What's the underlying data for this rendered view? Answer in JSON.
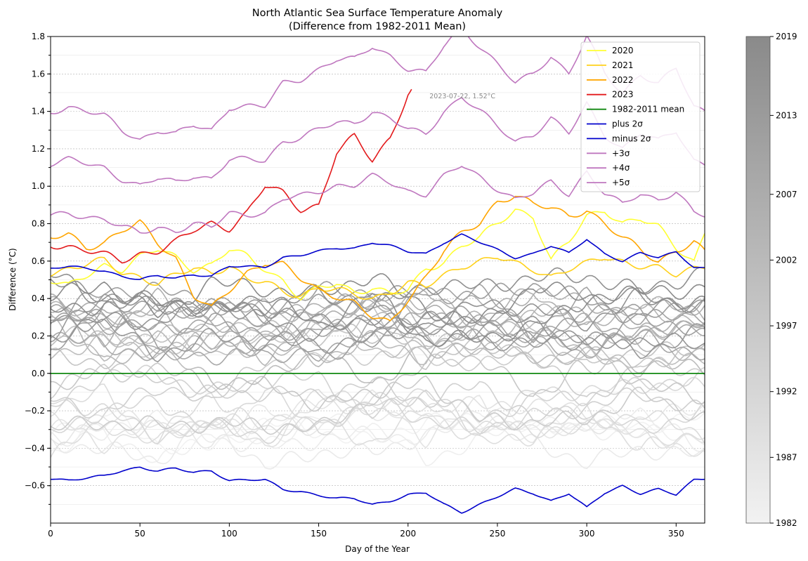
{
  "chart_data": {
    "type": "line",
    "title": "North Atlantic Sea Surface Temperature Anomaly",
    "subtitle": "(Difference from 1982-2011 Mean)",
    "xlabel": "Day of the Year",
    "ylabel": "Difference (°C)",
    "xlim": [
      0,
      366
    ],
    "ylim": [
      -0.8,
      1.8
    ],
    "xticks": [
      0,
      50,
      100,
      150,
      200,
      250,
      300,
      350
    ],
    "yticks": [
      -0.6,
      -0.4,
      -0.2,
      0.0,
      0.2,
      0.4,
      0.6,
      0.8,
      1.0,
      1.2,
      1.4,
      1.6,
      1.8
    ],
    "grid": true,
    "legend_position": "top-right",
    "annotation": {
      "text": "2023-07-22, 1.52°C",
      "x": 212,
      "y": 1.47
    },
    "colorbar": {
      "min": 1982,
      "max": 2019,
      "ticks": [
        1982,
        1987,
        1992,
        1997,
        2002,
        2007,
        2013,
        2019
      ],
      "color_low": "#f2f2f2",
      "color_high": "#8a8a8a"
    },
    "background_years": {
      "description_values_by_year": "grey lines 1982-2019",
      "mean_by_year": [
        -0.32,
        -0.36,
        -0.3,
        -0.38,
        -0.3,
        -0.24,
        -0.28,
        -0.3,
        -0.22,
        -0.2,
        -0.26,
        -0.14,
        -0.12,
        -0.02,
        -0.16,
        -0.04,
        0.18,
        0.12,
        0.14,
        0.04,
        0.16,
        0.22,
        0.26,
        0.34,
        0.3,
        0.24,
        0.22,
        0.2,
        0.34,
        0.24,
        0.34,
        0.3,
        0.18,
        0.26,
        0.38,
        0.44,
        0.3,
        0.4
      ]
    },
    "series": [
      {
        "name": "2020",
        "color": "#ffff33",
        "x": [
          0,
          10,
          20,
          30,
          40,
          50,
          60,
          70,
          80,
          90,
          100,
          110,
          120,
          130,
          140,
          150,
          160,
          170,
          180,
          190,
          200,
          210,
          220,
          230,
          240,
          250,
          260,
          270,
          280,
          290,
          300,
          310,
          320,
          330,
          340,
          350,
          360,
          366
        ],
        "values": [
          0.5,
          0.46,
          0.52,
          0.58,
          0.56,
          0.62,
          0.66,
          0.62,
          0.56,
          0.58,
          0.66,
          0.62,
          0.56,
          0.5,
          0.4,
          0.45,
          0.48,
          0.44,
          0.46,
          0.42,
          0.44,
          0.56,
          0.6,
          0.68,
          0.72,
          0.8,
          0.88,
          0.84,
          0.6,
          0.7,
          0.84,
          0.88,
          0.8,
          0.82,
          0.78,
          0.68,
          0.6,
          0.75
        ]
      },
      {
        "name": "2021",
        "color": "#ffd11a",
        "x": [
          0,
          10,
          20,
          30,
          40,
          50,
          60,
          70,
          80,
          90,
          100,
          110,
          120,
          130,
          140,
          150,
          160,
          170,
          180,
          190,
          200,
          210,
          220,
          230,
          240,
          250,
          260,
          270,
          280,
          290,
          300,
          310,
          320,
          330,
          340,
          350,
          360,
          366
        ],
        "values": [
          0.54,
          0.56,
          0.58,
          0.6,
          0.54,
          0.52,
          0.48,
          0.52,
          0.56,
          0.54,
          0.58,
          0.5,
          0.48,
          0.44,
          0.42,
          0.46,
          0.44,
          0.42,
          0.4,
          0.44,
          0.48,
          0.46,
          0.52,
          0.58,
          0.6,
          0.62,
          0.58,
          0.56,
          0.52,
          0.56,
          0.58,
          0.62,
          0.6,
          0.58,
          0.56,
          0.52,
          0.56,
          0.58
        ]
      },
      {
        "name": "2022",
        "color": "#ffa500",
        "x": [
          0,
          10,
          20,
          30,
          40,
          50,
          60,
          70,
          80,
          90,
          100,
          110,
          120,
          130,
          140,
          150,
          160,
          170,
          180,
          190,
          200,
          210,
          220,
          230,
          240,
          250,
          260,
          270,
          280,
          290,
          300,
          310,
          320,
          330,
          340,
          350,
          360,
          366
        ],
        "values": [
          0.72,
          0.74,
          0.68,
          0.7,
          0.76,
          0.8,
          0.7,
          0.62,
          0.42,
          0.34,
          0.44,
          0.54,
          0.6,
          0.58,
          0.5,
          0.44,
          0.42,
          0.38,
          0.3,
          0.26,
          0.4,
          0.52,
          0.66,
          0.74,
          0.8,
          0.92,
          0.96,
          0.9,
          0.88,
          0.84,
          0.88,
          0.8,
          0.72,
          0.66,
          0.6,
          0.66,
          0.7,
          0.64
        ]
      },
      {
        "name": "2023",
        "color": "#e31a1c",
        "x": [
          0,
          10,
          20,
          30,
          40,
          50,
          60,
          70,
          80,
          90,
          100,
          110,
          120,
          130,
          140,
          150,
          160,
          170,
          180,
          190,
          200,
          202
        ],
        "values": [
          0.69,
          0.68,
          0.66,
          0.63,
          0.6,
          0.64,
          0.66,
          0.7,
          0.76,
          0.8,
          0.78,
          0.86,
          1.0,
          0.96,
          0.88,
          0.9,
          1.18,
          1.26,
          1.14,
          1.26,
          1.5,
          1.52
        ]
      },
      {
        "name": "1982-2011 mean",
        "color": "#008000",
        "x": [
          0,
          366
        ],
        "values": [
          0.0,
          0.0
        ]
      },
      {
        "name": "plus 2σ",
        "color": "#0000cc",
        "x": [
          0,
          10,
          20,
          30,
          40,
          50,
          60,
          70,
          80,
          90,
          100,
          110,
          120,
          130,
          140,
          150,
          160,
          170,
          180,
          190,
          200,
          210,
          220,
          230,
          240,
          250,
          260,
          270,
          280,
          290,
          300,
          310,
          320,
          330,
          340,
          350,
          360,
          366
        ],
        "values": [
          0.56,
          0.57,
          0.56,
          0.55,
          0.52,
          0.5,
          0.52,
          0.51,
          0.53,
          0.52,
          0.57,
          0.57,
          0.57,
          0.62,
          0.63,
          0.65,
          0.67,
          0.67,
          0.7,
          0.68,
          0.65,
          0.64,
          0.7,
          0.74,
          0.7,
          0.66,
          0.62,
          0.64,
          0.68,
          0.64,
          0.72,
          0.64,
          0.6,
          0.64,
          0.62,
          0.65,
          0.57,
          0.56
        ]
      },
      {
        "name": "minus 2σ",
        "color": "#0000cc",
        "x": [
          0,
          10,
          20,
          30,
          40,
          50,
          60,
          70,
          80,
          90,
          100,
          110,
          120,
          130,
          140,
          150,
          160,
          170,
          180,
          190,
          200,
          210,
          220,
          230,
          240,
          250,
          260,
          270,
          280,
          290,
          300,
          310,
          320,
          330,
          340,
          350,
          360,
          366
        ],
        "values": [
          -0.56,
          -0.57,
          -0.56,
          -0.55,
          -0.52,
          -0.5,
          -0.52,
          -0.51,
          -0.53,
          -0.52,
          -0.57,
          -0.57,
          -0.57,
          -0.62,
          -0.63,
          -0.65,
          -0.67,
          -0.67,
          -0.7,
          -0.68,
          -0.65,
          -0.64,
          -0.7,
          -0.74,
          -0.7,
          -0.66,
          -0.62,
          -0.64,
          -0.68,
          -0.64,
          -0.72,
          -0.64,
          -0.6,
          -0.64,
          -0.62,
          -0.65,
          -0.57,
          -0.56
        ]
      },
      {
        "name": "+3σ",
        "color": "#bf77bf",
        "factor": 1.5
      },
      {
        "name": "+4σ",
        "color": "#bf77bf",
        "factor": 2.0
      },
      {
        "name": "+5σ",
        "color": "#bf77bf",
        "factor": 2.5
      }
    ]
  }
}
